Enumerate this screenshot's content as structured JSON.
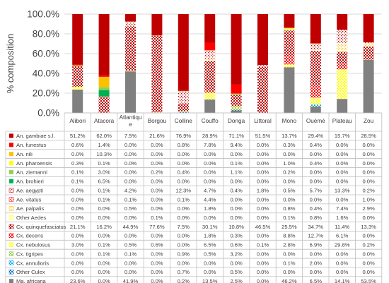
{
  "chart_data": {
    "type": "bar",
    "stacked": true,
    "ylabel": "% composition",
    "ylim": [
      0,
      100
    ],
    "yticks": [
      "0.0%",
      "20.0%",
      "40.0%",
      "60.0%",
      "80.0%",
      "100.0%"
    ],
    "grid": true,
    "categories": [
      "Alibori",
      "Atacora",
      "Atlantique",
      "Borgou",
      "Colline",
      "Couffo",
      "Donga",
      "Littoral",
      "Mono",
      "Ouémé",
      "Plateau",
      "Zou"
    ],
    "category_display": [
      "Alibori",
      "Atacora",
      "Atlantiqu\ne",
      "Borgou",
      "Colline",
      "Couffo",
      "Donga",
      "Littoral",
      "Mono",
      "Ouémé",
      "Plateau",
      "Zou"
    ],
    "series": [
      {
        "name": "An. gambiae s.l.",
        "color": "#c00000",
        "pattern": "solid",
        "values": [
          51.2,
          62.0,
          7.5,
          21.6,
          76.9,
          28.9,
          71.1,
          51.5,
          13.7,
          29.4,
          15.7,
          28.5
        ],
        "labels": [
          "51.2%",
          "62.0%",
          "7.5%",
          "21.6%",
          "76.9%",
          "28.9%",
          "71.1%",
          "51.5%",
          "13.7%",
          "29.4%",
          "15.7%",
          "28.5%"
        ]
      },
      {
        "name": "An. funestus",
        "color": "#ff0000",
        "pattern": "solid",
        "values": [
          0.6,
          1.4,
          0.0,
          0.0,
          0.8,
          7.8,
          9.4,
          0.0,
          0.3,
          0.4,
          0.0,
          0.0
        ],
        "labels": [
          "0.6%",
          "1.4%",
          "0.0%",
          "0.0%",
          "0.8%",
          "7.8%",
          "9.4%",
          "0.0%",
          "0.3%",
          "0.4%",
          "0.0%",
          "0.0%"
        ]
      },
      {
        "name": "An. nili",
        "color": "#ffc000",
        "pattern": "solid",
        "values": [
          0.0,
          10.3,
          0.0,
          0.0,
          0.0,
          0.0,
          0.0,
          0.0,
          0.0,
          0.0,
          0.0,
          0.0
        ],
        "labels": [
          "0.0%",
          "10.3%",
          "0.0%",
          "0.0%",
          "0.0%",
          "0.0%",
          "0.0%",
          "0.0%",
          "0.0%",
          "0.0%",
          "0.0%",
          "0.0%"
        ]
      },
      {
        "name": "An. pharoensis",
        "color": "#ffff00",
        "pattern": "solid",
        "values": [
          0.3,
          0.1,
          0.0,
          0.0,
          0.0,
          0.0,
          0.1,
          0.0,
          1.0,
          0.4,
          0.0,
          0.0
        ],
        "labels": [
          "0.3%",
          "0.1%",
          "0.0%",
          "0.0%",
          "0.0%",
          "0.0%",
          "0.1%",
          "0.0%",
          "1.0%",
          "0.4%",
          "0.0%",
          "0.0%"
        ]
      },
      {
        "name": "An. ziemanni",
        "color": "#92d050",
        "pattern": "solid",
        "values": [
          0.1,
          3.0,
          0.0,
          0.2,
          0.4,
          0.0,
          1.1,
          0.0,
          0.2,
          0.0,
          0.0,
          0.0
        ],
        "labels": [
          "0.1%",
          "3.0%",
          "0.0%",
          "0.2%",
          "0.4%",
          "0.0%",
          "1.1%",
          "0.0%",
          "0.2%",
          "0.0%",
          "0.0%",
          "0.0%"
        ]
      },
      {
        "name": "An. brohieri",
        "color": "#00b050",
        "pattern": "solid",
        "values": [
          0.1,
          6.5,
          0.0,
          0.0,
          0.0,
          0.0,
          0.0,
          0.0,
          0.0,
          0.0,
          0.0,
          0.0
        ],
        "labels": [
          "0.1%",
          "6.5%",
          "0.0%",
          "0.0%",
          "0.0%",
          "0.0%",
          "0.0%",
          "0.0%",
          "0.0%",
          "0.0%",
          "0.0%",
          "0.0%"
        ]
      },
      {
        "name": "Ae. aegypti",
        "color": "#c00000",
        "pattern": "dots",
        "values": [
          0.0,
          0.1,
          4.2,
          0.0,
          12.3,
          4.7,
          0.4,
          1.8,
          0.5,
          5.7,
          13.3,
          0.2
        ],
        "labels": [
          "0.0%",
          "0.1%",
          "4.2%",
          "0.0%",
          "12.3%",
          "4.7%",
          "0.4%",
          "1.8%",
          "0.5%",
          "5.7%",
          "13.3%",
          "0.2%"
        ]
      },
      {
        "name": "Ae. vitatus",
        "color": "#ff0000",
        "pattern": "dots",
        "values": [
          0.0,
          0.1,
          0.1,
          0.0,
          0.1,
          4.4,
          0.0,
          0.0,
          0.0,
          0.0,
          0.0,
          1.0
        ],
        "labels": [
          "0.0%",
          "0.1%",
          "0.1%",
          "0.0%",
          "0.1%",
          "4.4%",
          "0.0%",
          "0.0%",
          "0.0%",
          "0.0%",
          "0.0%",
          "1.0%"
        ]
      },
      {
        "name": "Ae. palpalis",
        "color": "#ffc000",
        "pattern": "dots",
        "values": [
          0.0,
          0.0,
          0.5,
          0.0,
          0.0,
          1.8,
          0.0,
          0.0,
          0.8,
          0.4,
          7.4,
          2.9
        ],
        "labels": [
          "0.0%",
          "0.0%",
          "0.5%",
          "0.0%",
          "0.0%",
          "1.8%",
          "0.0%",
          "0.0%",
          "0.8%",
          "0.4%",
          "7.4%",
          "2.9%"
        ]
      },
      {
        "name": "Other  Aedes",
        "color": "#ffff00",
        "pattern": "dots",
        "values": [
          0.0,
          0.0,
          0.0,
          0.1,
          0.0,
          0.0,
          0.0,
          0.0,
          0.1,
          0.8,
          1.6,
          0.0
        ],
        "labels": [
          "0.0%",
          "0.0%",
          "0.0%",
          "0.1%",
          "0.0%",
          "0.0%",
          "0.0%",
          "0.0%",
          "0.1%",
          "0.8%",
          "1.6%",
          "0.0%"
        ]
      },
      {
        "name": "Cx. quinquefasciatus",
        "color": "#c00000",
        "pattern": "check",
        "values": [
          21.1,
          16.2,
          44.9,
          77.6,
          7.5,
          30.1,
          10.8,
          46.5,
          25.5,
          34.7,
          11.4,
          13.3
        ],
        "labels": [
          "21.1%",
          "16.2%",
          "44.9%",
          "77.6%",
          "7.5%",
          "30.1%",
          "10.8%",
          "46.5%",
          "25.5%",
          "34.7%",
          "11.4%",
          "13.3%"
        ]
      },
      {
        "name": "Cx. decens",
        "color": "#ff0000",
        "pattern": "check",
        "values": [
          0.0,
          0.0,
          0.0,
          0.0,
          0.0,
          1.8,
          0.3,
          0.0,
          8.8,
          12.7,
          6.1,
          0.0
        ],
        "labels": [
          "0.0%",
          "0.0%",
          "0.0%",
          "0.0%",
          "0.0%",
          "1.8%",
          "0.3%",
          "0.0%",
          "8.8%",
          "12.7%",
          "6.1%",
          "0.0%"
        ]
      },
      {
        "name": "Cx. nebulosus",
        "color": "#ffff00",
        "pattern": "check",
        "values": [
          3.0,
          0.1,
          0.5,
          0.6,
          0.0,
          6.5,
          0.6,
          0.1,
          2.8,
          6.9,
          29.8,
          0.2
        ],
        "labels": [
          "3.0%",
          "0.1%",
          "0.5%",
          "0.6%",
          "0.0%",
          "6.5%",
          "0.6%",
          "0.1%",
          "2.8%",
          "6.9%",
          "29.8%",
          "0.2%"
        ]
      },
      {
        "name": "Cx. tigripes",
        "color": "#92d050",
        "pattern": "check",
        "values": [
          0.0,
          0.1,
          0.1,
          0.0,
          0.9,
          0.5,
          3.2,
          0.0,
          0.0,
          0.0,
          0.0,
          0.0
        ],
        "labels": [
          "0.0%",
          "0.1%",
          "0.1%",
          "0.0%",
          "0.9%",
          "0.5%",
          "3.2%",
          "0.0%",
          "0.0%",
          "0.0%",
          "0.0%",
          "0.0%"
        ]
      },
      {
        "name": "Cx. annulioris",
        "color": "#00b0f0",
        "pattern": "check",
        "values": [
          0.0,
          0.0,
          0.0,
          0.0,
          0.0,
          0.0,
          0.0,
          0.0,
          0.1,
          2.0,
          0.0,
          0.0
        ],
        "labels": [
          "0.0%",
          "0.0%",
          "0.0%",
          "0.0%",
          "0.0%",
          "0.0%",
          "0.0%",
          "0.0%",
          "0.1%",
          "2.0%",
          "0.0%",
          "0.0%"
        ]
      },
      {
        "name": "Other Culex",
        "color": "#0070c0",
        "pattern": "check",
        "values": [
          0.0,
          0.0,
          0.0,
          0.0,
          0.7,
          0.0,
          0.5,
          0.0,
          0.0,
          0.0,
          0.0,
          0.0
        ],
        "labels": [
          "0.0%",
          "0.0%",
          "0.0%",
          "0.0%",
          "0.7%",
          "0.0%",
          "0.5%",
          "0.0%",
          "0.0%",
          "0.0%",
          "0.0%",
          "0.0%"
        ]
      },
      {
        "name": "Ma. africana",
        "color": "#808080",
        "pattern": "solid",
        "values": [
          23.6,
          0.0,
          41.9,
          0.0,
          0.2,
          13.5,
          2.5,
          0.0,
          46.2,
          6.5,
          14.1,
          53.5
        ],
        "labels": [
          "23.6%",
          "0.0%",
          "41.9%",
          "0.0%",
          "0.2%",
          "13.5%",
          "2.5%",
          "0.0%",
          "46.2%",
          "6.5%",
          "14.1%",
          "53.5%"
        ]
      }
    ]
  }
}
